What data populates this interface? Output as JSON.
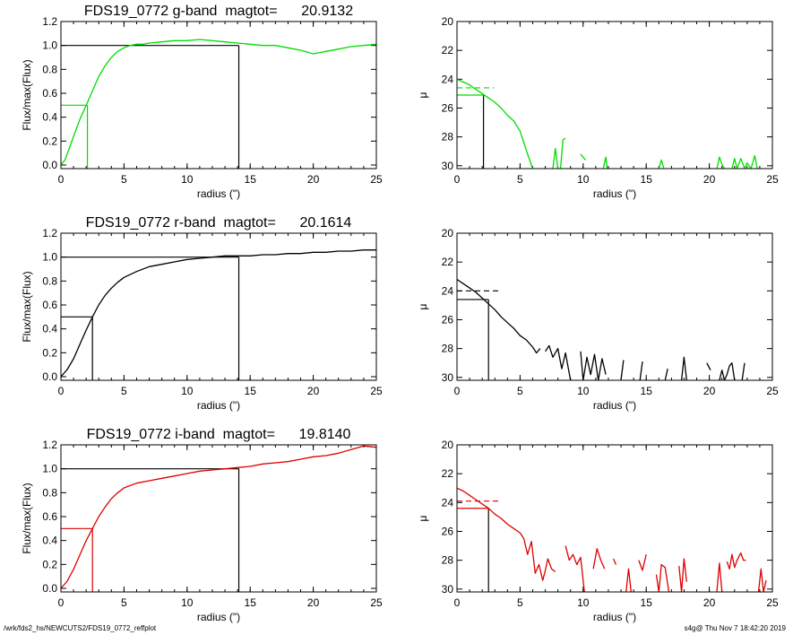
{
  "footer": {
    "path": "/wrk/fds2_hs/NEWCUTS2/FDS19_0772_reffplot",
    "stamp": "s4g@  Thu Nov  7 18:42:20 2019"
  },
  "chart_data": [
    {
      "type": "line",
      "band": "g",
      "title": "FDS19_0772 g-band  magtot=      20.9132",
      "xlabel": "radius (\")",
      "ylabel": "Flux/max(Flux)",
      "xlim": [
        0,
        25
      ],
      "ylim": [
        -0.03,
        1.2
      ],
      "xticks": [
        0,
        5,
        10,
        15,
        20,
        25
      ],
      "yticks": [
        0.0,
        0.2,
        0.4,
        0.6,
        0.8,
        1.0,
        1.2
      ],
      "ytick_labels": [
        "0.0",
        "0.2",
        "0.4",
        "0.6",
        "0.8",
        "1.0",
        "1.2"
      ],
      "color": "#00dd00",
      "series": [
        {
          "x": [
            0,
            0.3,
            0.6,
            1,
            1.5,
            2,
            2.5,
            3,
            3.5,
            4,
            4.5,
            5,
            5.5,
            6,
            6.5,
            7,
            8,
            9,
            10,
            11,
            12,
            13,
            14,
            15,
            16,
            17,
            18,
            19,
            20,
            21,
            22,
            23,
            24,
            25
          ],
          "y": [
            0,
            0.04,
            0.12,
            0.24,
            0.38,
            0.5,
            0.62,
            0.74,
            0.83,
            0.9,
            0.95,
            0.98,
            1.0,
            1.01,
            1.01,
            1.02,
            1.03,
            1.04,
            1.04,
            1.05,
            1.04,
            1.03,
            1.02,
            1.01,
            1.0,
            1.0,
            0.98,
            0.96,
            0.93,
            0.95,
            0.97,
            0.99,
            1.0,
            1.01
          ]
        }
      ],
      "reference": {
        "half_radius": 2.1,
        "half_value": 0.5,
        "total_radius": 14.1,
        "total_value": 1.0,
        "half_color": "#00dd00",
        "total_color": "#000000"
      }
    },
    {
      "type": "line",
      "band": "g",
      "title": "",
      "xlabel": "radius (\")",
      "ylabel": "μ",
      "xlim": [
        0,
        25
      ],
      "ylim": [
        30.2,
        20
      ],
      "inverted_y": true,
      "xticks": [
        0,
        5,
        10,
        15,
        20,
        25
      ],
      "yticks": [
        20,
        22,
        24,
        26,
        28,
        30
      ],
      "color": "#00dd00",
      "series": [
        {
          "x": [
            0,
            0.5,
            1,
            1.5,
            2,
            2.5,
            3,
            3.5,
            4,
            4.5,
            5,
            5.3,
            5.6,
            6
          ],
          "y": [
            24,
            24.2,
            24.4,
            24.7,
            25,
            25.3,
            25.6,
            26,
            26.5,
            26.9,
            27.6,
            28.4,
            29.2,
            30.2
          ]
        },
        {
          "x": [
            7.6,
            7.8,
            8.0
          ],
          "y": [
            30.2,
            28.8,
            30.2
          ]
        },
        {
          "x": [
            8.2,
            8.4,
            8.6
          ],
          "y": [
            30.2,
            28.2,
            28.1
          ]
        },
        {
          "x": [
            9.8,
            10.2
          ],
          "y": [
            29.2,
            29.6
          ]
        },
        {
          "x": [
            11.6,
            11.8,
            11.9
          ],
          "y": [
            30.2,
            29.4,
            30.2
          ]
        },
        {
          "x": [
            16.0,
            16.2,
            16.4
          ],
          "y": [
            30.2,
            29.6,
            30.2
          ]
        },
        {
          "x": [
            20.6,
            20.8,
            21.0,
            21.2
          ],
          "y": [
            30.2,
            29.4,
            29.9,
            30.2
          ]
        },
        {
          "x": [
            21.8,
            22.0,
            22.2,
            22.5,
            22.8,
            23.0,
            23.3,
            23.6,
            23.8
          ],
          "y": [
            30.2,
            29.5,
            30.2,
            29.5,
            30.2,
            29.8,
            30.2,
            29.3,
            30.2
          ]
        }
      ],
      "reference": {
        "half_radius": 2.1,
        "mu_half": 25.1,
        "mu_dash": 24.6,
        "line_color": "#000000",
        "level_color": "#00dd00"
      }
    },
    {
      "type": "line",
      "band": "r",
      "title": "FDS19_0772 r-band  magtot=      20.1614",
      "xlabel": "radius (\")",
      "ylabel": "Flux/max(Flux)",
      "xlim": [
        0,
        25
      ],
      "ylim": [
        -0.03,
        1.2
      ],
      "xticks": [
        0,
        5,
        10,
        15,
        20,
        25
      ],
      "yticks": [
        0.0,
        0.2,
        0.4,
        0.6,
        0.8,
        1.0,
        1.2
      ],
      "ytick_labels": [
        "0.0",
        "0.2",
        "0.4",
        "0.6",
        "0.8",
        "1.0",
        "1.2"
      ],
      "color": "#000000",
      "series": [
        {
          "x": [
            0,
            0.5,
            1,
            1.5,
            2,
            2.5,
            3,
            3.5,
            4,
            4.5,
            5,
            6,
            7,
            8,
            9,
            10,
            11,
            12,
            13,
            14,
            15,
            16,
            17,
            18,
            19,
            20,
            21,
            22,
            23,
            24,
            25
          ],
          "y": [
            0,
            0.06,
            0.15,
            0.27,
            0.39,
            0.5,
            0.6,
            0.68,
            0.74,
            0.79,
            0.83,
            0.88,
            0.92,
            0.94,
            0.96,
            0.98,
            0.99,
            1.0,
            1.01,
            1.01,
            1.01,
            1.02,
            1.02,
            1.03,
            1.03,
            1.04,
            1.04,
            1.05,
            1.05,
            1.06,
            1.06
          ]
        }
      ],
      "reference": {
        "half_radius": 2.5,
        "half_value": 0.5,
        "total_radius": 14.1,
        "total_value": 1.0,
        "half_color": "#000000",
        "total_color": "#000000"
      }
    },
    {
      "type": "line",
      "band": "r",
      "title": "",
      "xlabel": "radius (\")",
      "ylabel": "μ",
      "xlim": [
        0,
        25
      ],
      "ylim": [
        30.2,
        20
      ],
      "inverted_y": true,
      "xticks": [
        0,
        5,
        10,
        15,
        20,
        25
      ],
      "yticks": [
        20,
        22,
        24,
        26,
        28,
        30
      ],
      "color": "#000000",
      "series": [
        {
          "x": [
            0,
            0.5,
            1,
            1.5,
            2,
            2.5,
            3,
            3.5,
            4,
            4.5,
            5,
            5.5,
            6,
            6.3,
            6.6
          ],
          "y": [
            23.2,
            23.5,
            23.8,
            24.1,
            24.5,
            24.9,
            25.3,
            25.8,
            26.2,
            26.6,
            27.1,
            27.4,
            27.9,
            28.3,
            28.0
          ]
        },
        {
          "x": [
            7.0,
            7.3,
            7.6,
            8.0,
            8.3,
            8.6,
            9.0
          ],
          "y": [
            28.2,
            27.8,
            28.6,
            28.0,
            29.4,
            28.3,
            30.2
          ]
        },
        {
          "x": [
            9.8,
            10.0,
            10.3,
            10.6,
            10.9,
            11.2,
            11.5,
            11.8
          ],
          "y": [
            28.2,
            30.2,
            28.6,
            29.8,
            28.4,
            30.2,
            28.7,
            29.8
          ]
        },
        {
          "x": [
            13.0,
            13.2
          ],
          "y": [
            30.2,
            28.8
          ]
        },
        {
          "x": [
            14.5,
            14.7
          ],
          "y": [
            30.2,
            28.9
          ]
        },
        {
          "x": [
            16.5,
            16.7
          ],
          "y": [
            30.2,
            29.4
          ]
        },
        {
          "x": [
            17.8,
            18.0,
            18.2
          ],
          "y": [
            30.2,
            28.6,
            30.2
          ]
        },
        {
          "x": [
            19.8,
            20.1
          ],
          "y": [
            29.0,
            29.5
          ]
        },
        {
          "x": [
            20.8,
            21.0,
            21.2,
            21.4,
            21.6,
            21.8,
            22.0
          ],
          "y": [
            30.2,
            29.5,
            30.2,
            29.8,
            29.2,
            29.0,
            30.2
          ]
        },
        {
          "x": [
            22.6,
            22.8
          ],
          "y": [
            30.2,
            29.0
          ]
        }
      ],
      "reference": {
        "half_radius": 2.5,
        "mu_half": 24.6,
        "mu_dash": 24.0,
        "line_color": "#000000",
        "level_color": "#000000"
      }
    },
    {
      "type": "line",
      "band": "i",
      "title": "FDS19_0772 i-band  magtot=      19.8140",
      "xlabel": "radius (\")",
      "ylabel": "Flux/max(Flux)",
      "xlim": [
        0,
        25
      ],
      "ylim": [
        -0.03,
        1.2
      ],
      "xticks": [
        0,
        5,
        10,
        15,
        20,
        25
      ],
      "yticks": [
        0.0,
        0.2,
        0.4,
        0.6,
        0.8,
        1.0,
        1.2
      ],
      "ytick_labels": [
        "0.0",
        "0.2",
        "0.4",
        "0.6",
        "0.8",
        "1.0",
        "1.2"
      ],
      "color": "#dd0000",
      "series": [
        {
          "x": [
            0,
            0.5,
            1,
            1.5,
            2,
            2.5,
            3,
            3.5,
            4,
            4.5,
            5,
            5.5,
            6,
            7,
            8,
            9,
            10,
            11,
            12,
            13,
            14,
            15,
            16,
            17,
            18,
            19,
            20,
            21,
            22,
            23,
            24,
            25
          ],
          "y": [
            0,
            0.06,
            0.16,
            0.28,
            0.4,
            0.5,
            0.6,
            0.68,
            0.75,
            0.8,
            0.84,
            0.86,
            0.88,
            0.9,
            0.92,
            0.94,
            0.96,
            0.98,
            0.99,
            1.0,
            1.01,
            1.02,
            1.04,
            1.05,
            1.06,
            1.08,
            1.1,
            1.11,
            1.13,
            1.16,
            1.19,
            1.18
          ]
        }
      ],
      "reference": {
        "half_radius": 2.5,
        "half_value": 0.5,
        "total_radius": 14.1,
        "total_value": 1.0,
        "half_color": "#dd0000",
        "total_color": "#000000"
      }
    },
    {
      "type": "line",
      "band": "i",
      "title": "",
      "xlabel": "radius (\")",
      "ylabel": "μ",
      "xlim": [
        0,
        25
      ],
      "ylim": [
        30.2,
        20
      ],
      "inverted_y": true,
      "xticks": [
        0,
        5,
        10,
        15,
        20,
        25
      ],
      "yticks": [
        20,
        22,
        24,
        26,
        28,
        30
      ],
      "color": "#dd0000",
      "series": [
        {
          "x": [
            0,
            0.5,
            1,
            1.5,
            2,
            2.5,
            3,
            3.5,
            4,
            4.5,
            5,
            5.3,
            5.6,
            5.9,
            6.2,
            6.5,
            6.8,
            7.0,
            7.2,
            7.5,
            7.8
          ],
          "y": [
            23.0,
            23.2,
            23.5,
            23.8,
            24.1,
            24.4,
            24.8,
            25.1,
            25.5,
            25.8,
            26.1,
            26.5,
            27.6,
            26.7,
            28.9,
            28.3,
            29.4,
            28.7,
            27.9,
            28.6,
            28.8
          ]
        },
        {
          "x": [
            8.6,
            8.9,
            9.2,
            9.5,
            9.8,
            10.1
          ],
          "y": [
            27.0,
            28.0,
            27.6,
            28.3,
            27.8,
            30.2
          ]
        },
        {
          "x": [
            10.8,
            11.1,
            11.4,
            11.7
          ],
          "y": [
            28.6,
            27.2,
            28.0,
            28.6
          ]
        },
        {
          "x": [
            12.4,
            12.6
          ],
          "y": [
            27.9,
            28.3
          ]
        },
        {
          "x": [
            13.4,
            13.6,
            13.8
          ],
          "y": [
            30.2,
            28.6,
            30.2
          ]
        },
        {
          "x": [
            14.4,
            14.7,
            15.0
          ],
          "y": [
            28.0,
            28.7,
            27.6
          ]
        },
        {
          "x": [
            15.8,
            16.0,
            16.2,
            16.5,
            16.8
          ],
          "y": [
            29.0,
            30.2,
            28.3,
            28.5,
            30.2
          ]
        },
        {
          "x": [
            17.6,
            17.8,
            18.0,
            18.2
          ],
          "y": [
            28.4,
            30.2,
            27.9,
            29.5
          ]
        },
        {
          "x": [
            20.6,
            20.8,
            21.0
          ],
          "y": [
            30.2,
            28.2,
            30.2
          ]
        },
        {
          "x": [
            21.4,
            21.6,
            21.8,
            22.0,
            22.2,
            22.5,
            22.7,
            22.9
          ],
          "y": [
            28.1,
            28.6,
            27.6,
            28.5,
            28.0,
            27.5,
            28.0,
            28.0
          ]
        },
        {
          "x": [
            23.9,
            24.1,
            24.3,
            24.5
          ],
          "y": [
            30.2,
            28.6,
            30.2,
            29.4
          ]
        }
      ],
      "reference": {
        "half_radius": 2.5,
        "mu_half": 24.4,
        "mu_dash": 23.9,
        "line_color": "#000000",
        "level_color": "#dd0000"
      }
    }
  ]
}
